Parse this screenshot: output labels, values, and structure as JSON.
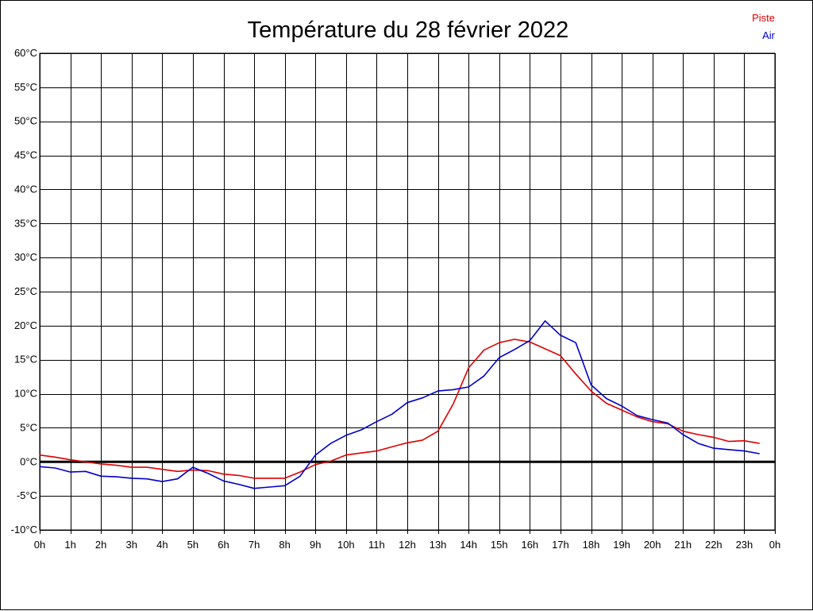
{
  "chart_data": {
    "type": "line",
    "title": "Température du 28 février 2022",
    "xlabel": "",
    "ylabel": "",
    "xlim": [
      0,
      24
    ],
    "ylim": [
      -10,
      60
    ],
    "grid": true,
    "legend_placement": "top-right",
    "x_tick_labels": [
      "0h",
      "1h",
      "2h",
      "3h",
      "4h",
      "5h",
      "6h",
      "7h",
      "8h",
      "9h",
      "10h",
      "11h",
      "12h",
      "13h",
      "14h",
      "15h",
      "16h",
      "17h",
      "18h",
      "19h",
      "20h",
      "21h",
      "22h",
      "23h",
      "0h"
    ],
    "y_tick_labels": [
      "60°C",
      "55°C",
      "50°C",
      "45°C",
      "40°C",
      "35°C",
      "30°C",
      "25°C",
      "20°C",
      "15°C",
      "10°C",
      "5°C",
      "0°C",
      "-5°C",
      "-10°C"
    ],
    "y_tick_values": [
      60,
      55,
      50,
      45,
      40,
      35,
      30,
      25,
      20,
      15,
      10,
      5,
      0,
      -5,
      -10
    ],
    "series": [
      {
        "name": "Piste",
        "color": "#dd0000",
        "x": [
          0,
          0.5,
          1,
          1.5,
          2,
          2.5,
          3,
          3.5,
          4,
          4.5,
          5,
          5.5,
          6,
          6.5,
          7,
          7.5,
          8,
          8.5,
          9,
          9.5,
          10,
          10.5,
          11,
          11.5,
          12,
          12.5,
          13,
          13.5,
          14,
          14.5,
          15,
          15.5,
          16,
          16.5,
          17,
          17.5,
          18,
          18.5,
          19,
          19.5,
          20,
          20.5,
          21,
          21.5,
          22,
          22.5,
          23,
          23.5
        ],
        "values": [
          1.0,
          0.7,
          0.3,
          0.0,
          -0.3,
          -0.5,
          -0.8,
          -0.8,
          -1.1,
          -1.4,
          -1.2,
          -1.3,
          -1.8,
          -2.0,
          -2.4,
          -2.4,
          -2.4,
          -1.5,
          -0.4,
          0.1,
          1.0,
          1.3,
          1.6,
          2.2,
          2.8,
          3.2,
          4.5,
          8.5,
          13.8,
          16.4,
          17.5,
          18.0,
          17.6,
          16.6,
          15.6,
          12.9,
          10.4,
          8.6,
          7.6,
          6.6,
          5.9,
          5.6,
          4.5,
          4.0,
          3.6,
          3.0,
          3.1,
          2.7
        ]
      },
      {
        "name": "Air",
        "color": "#0000cc",
        "x": [
          0,
          0.5,
          1,
          1.5,
          2,
          2.5,
          3,
          3.5,
          4,
          4.5,
          5,
          5.5,
          6,
          6.5,
          7,
          7.5,
          8,
          8.5,
          9,
          9.5,
          10,
          10.5,
          11,
          11.5,
          12,
          12.5,
          13,
          13.5,
          14,
          14.5,
          15,
          15.5,
          16,
          16.5,
          17,
          17.5,
          18,
          18.5,
          19,
          19.5,
          20,
          20.5,
          21,
          21.5,
          22,
          22.5,
          23,
          23.5
        ],
        "values": [
          -0.7,
          -0.9,
          -1.5,
          -1.4,
          -2.1,
          -2.2,
          -2.4,
          -2.5,
          -2.9,
          -2.5,
          -0.8,
          -1.7,
          -2.8,
          -3.3,
          -3.9,
          -3.7,
          -3.5,
          -2.1,
          1.0,
          2.7,
          3.9,
          4.7,
          5.9,
          7.0,
          8.7,
          9.4,
          10.4,
          10.6,
          11.0,
          12.6,
          15.3,
          16.5,
          17.8,
          20.7,
          18.6,
          17.5,
          11.3,
          9.3,
          8.2,
          6.8,
          6.2,
          5.7,
          4.0,
          2.7,
          2.0,
          1.8,
          1.6,
          1.2
        ]
      }
    ]
  }
}
